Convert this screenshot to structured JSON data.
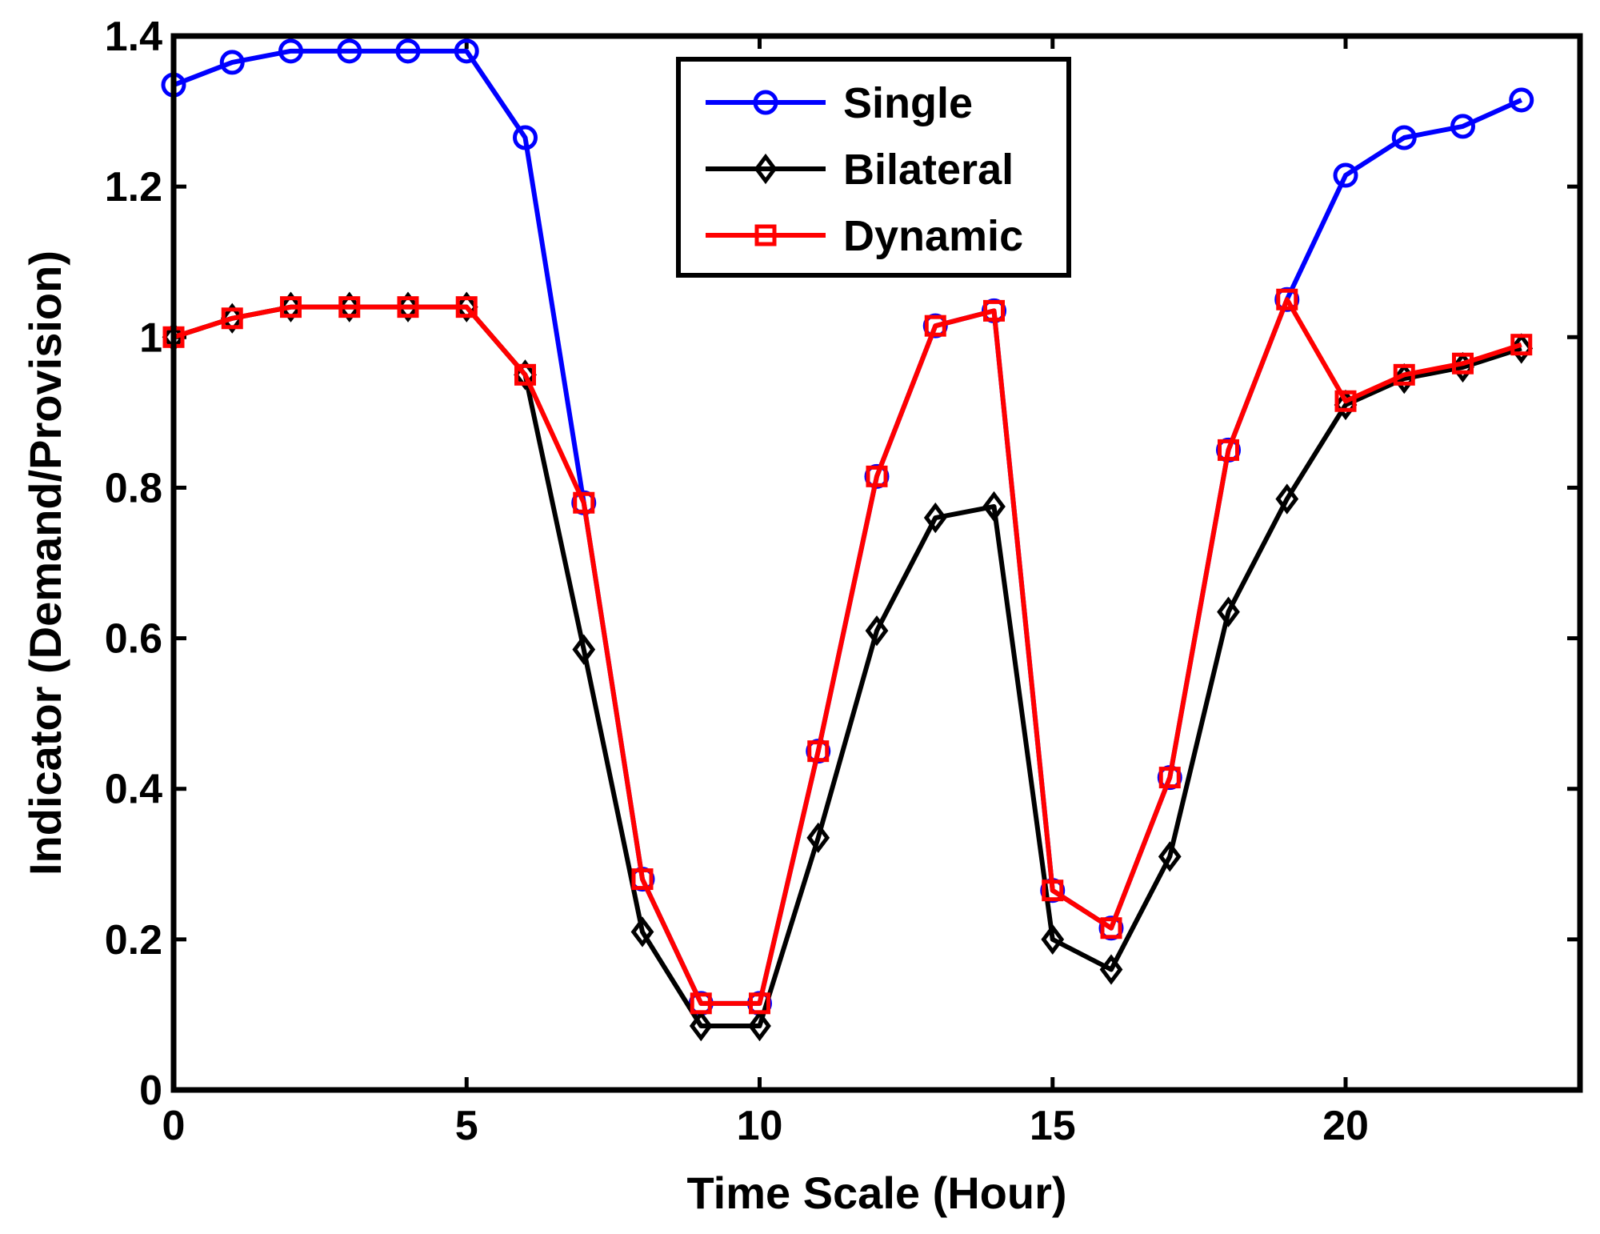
{
  "chart_data": {
    "type": "line",
    "title": "",
    "xlabel": "Time Scale (Hour)",
    "ylabel": "Indicator (Demand/Provision)",
    "xlim": [
      0,
      24
    ],
    "ylim": [
      0,
      1.4
    ],
    "xticks": [
      0,
      5,
      10,
      15,
      20
    ],
    "yticks": [
      0,
      0.2,
      0.4,
      0.6,
      0.8,
      1,
      1.2,
      1.4
    ],
    "xtick_labels": [
      "0",
      "5",
      "10",
      "15",
      "20"
    ],
    "ytick_labels": [
      "0",
      "0.2",
      "0.4",
      "0.6",
      "0.8",
      "1",
      "1.2",
      "1.4"
    ],
    "grid": false,
    "legend_position": "top-center",
    "x": [
      0,
      1,
      2,
      3,
      4,
      5,
      6,
      7,
      8,
      9,
      10,
      11,
      12,
      13,
      14,
      15,
      16,
      17,
      18,
      19,
      20,
      21,
      22,
      23
    ],
    "series": [
      {
        "name": "Single",
        "color": "#0000ff",
        "marker": "circle",
        "values": [
          1.335,
          1.365,
          1.38,
          1.38,
          1.38,
          1.38,
          1.265,
          0.78,
          0.28,
          0.115,
          0.115,
          0.45,
          0.815,
          1.015,
          1.035,
          0.265,
          0.215,
          0.415,
          0.85,
          1.05,
          1.215,
          1.265,
          1.28,
          1.315
        ]
      },
      {
        "name": "Bilateral",
        "color": "#000000",
        "marker": "diamond",
        "values": [
          1.0,
          1.025,
          1.04,
          1.04,
          1.04,
          1.04,
          0.95,
          0.585,
          0.21,
          0.085,
          0.085,
          0.335,
          0.61,
          0.76,
          0.775,
          0.2,
          0.16,
          0.31,
          0.635,
          0.785,
          0.91,
          0.945,
          0.96,
          0.985
        ]
      },
      {
        "name": "Dynamic",
        "color": "#ff0000",
        "marker": "square",
        "values": [
          1.0,
          1.025,
          1.04,
          1.04,
          1.04,
          1.04,
          0.95,
          0.78,
          0.28,
          0.115,
          0.115,
          0.45,
          0.815,
          1.015,
          1.035,
          0.265,
          0.215,
          0.415,
          0.85,
          1.05,
          0.915,
          0.95,
          0.965,
          0.99
        ]
      }
    ]
  }
}
